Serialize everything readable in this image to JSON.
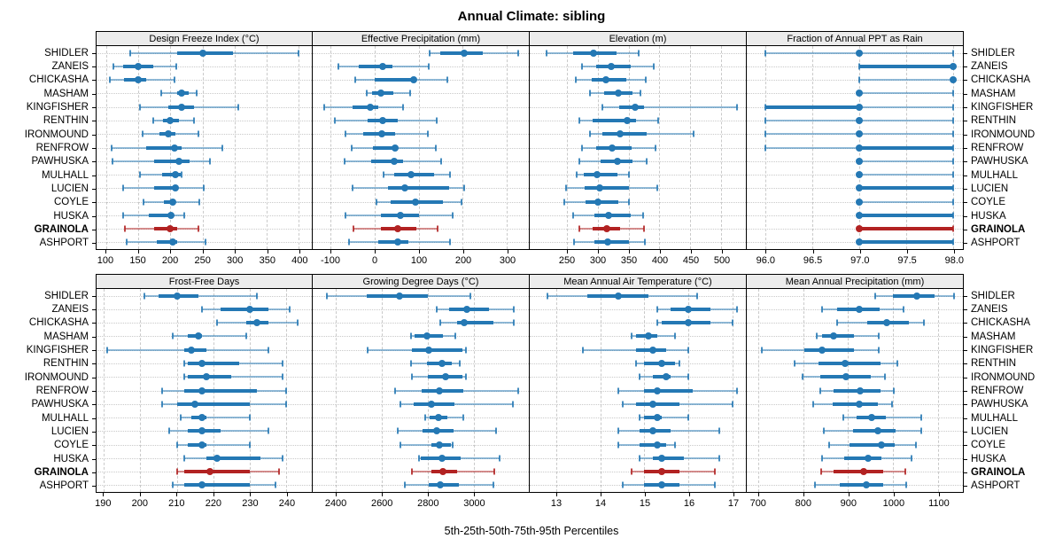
{
  "title": "Annual Climate: sibling",
  "caption": "5th-25th-50th-75th-95th Percentiles",
  "stations": [
    "SHIDLER",
    "ZANEIS",
    "CHICKASHA",
    "MASHAM",
    "KINGFISHER",
    "RENTHIN",
    "IRONMOUND",
    "RENFROW",
    "PAWHUSKA",
    "MULHALL",
    "LUCIEN",
    "COYLE",
    "HUSKA",
    "GRAINOLA",
    "ASHPORT"
  ],
  "highlight_station": "GRAINOLA",
  "colors": {
    "normal": "#2478b4",
    "highlight": "#b22222",
    "strip_bg": "#ececec",
    "grid": "#c9c9c9"
  },
  "chart_data": {
    "type": "dotplot-percentiles",
    "percentile_labels": [
      "5th",
      "25th",
      "50th",
      "75th",
      "95th"
    ],
    "layout": {
      "rows": 2,
      "cols": 4
    },
    "panels": [
      {
        "title": "Design Freeze Index (°C)",
        "row": 0,
        "col": 0,
        "xlim": [
          85,
          420
        ],
        "ticks": [
          100,
          150,
          200,
          250,
          300,
          350,
          400
        ],
        "tick_labels": [
          "100",
          "150",
          "200",
          "250",
          "300",
          "350",
          "400"
        ],
        "series": [
          [
            138,
            210,
            250,
            297,
            399
          ],
          [
            111,
            126,
            150,
            173,
            209
          ],
          [
            106,
            128,
            150,
            162,
            206
          ],
          [
            185,
            210,
            218,
            228,
            241
          ],
          [
            152,
            197,
            218,
            236,
            305
          ],
          [
            173,
            189,
            200,
            213,
            237
          ],
          [
            157,
            183,
            196,
            208,
            243
          ],
          [
            108,
            162,
            207,
            218,
            281
          ],
          [
            110,
            175,
            213,
            230,
            262
          ],
          [
            152,
            187,
            208,
            216,
            218
          ],
          [
            127,
            175,
            208,
            210,
            252
          ],
          [
            158,
            190,
            204,
            208,
            245
          ],
          [
            127,
            167,
            201,
            204,
            222
          ],
          [
            129,
            175,
            200,
            210,
            243
          ],
          [
            132,
            179,
            204,
            210,
            255
          ]
        ]
      },
      {
        "title": "Effective Precipitation (mm)",
        "row": 0,
        "col": 1,
        "xlim": [
          -140,
          350
        ],
        "ticks": [
          -100,
          0,
          100,
          200,
          300
        ],
        "tick_labels": [
          "-100",
          "0",
          "100",
          "200",
          "300"
        ],
        "series": [
          [
            125,
            149,
            203,
            245,
            325
          ],
          [
            -82,
            -36,
            18,
            41,
            124
          ],
          [
            -44,
            0,
            88,
            94,
            166
          ],
          [
            -17,
            -5,
            15,
            42,
            80
          ],
          [
            -113,
            -49,
            -9,
            8,
            64
          ],
          [
            -89,
            -15,
            18,
            52,
            142
          ],
          [
            -66,
            -26,
            16,
            47,
            121
          ],
          [
            -52,
            -3,
            46,
            52,
            139
          ],
          [
            -67,
            -7,
            44,
            64,
            152
          ],
          [
            21,
            45,
            83,
            136,
            172
          ],
          [
            -50,
            30,
            68,
            169,
            203
          ],
          [
            5,
            37,
            92,
            156,
            198
          ],
          [
            -66,
            15,
            58,
            102,
            178
          ],
          [
            -47,
            15,
            53,
            95,
            144
          ],
          [
            -57,
            8,
            52,
            77,
            171
          ]
        ]
      },
      {
        "title": "Elevation (m)",
        "row": 0,
        "col": 2,
        "xlim": [
          190,
          540
        ],
        "ticks": [
          250,
          300,
          350,
          400,
          450,
          500
        ],
        "tick_labels": [
          "250",
          "300",
          "350",
          "400",
          "450",
          "500"
        ],
        "series": [
          [
            217,
            261,
            293,
            331,
            367
          ],
          [
            275,
            298,
            322,
            354,
            391
          ],
          [
            264,
            290,
            313,
            347,
            378
          ],
          [
            288,
            311,
            333,
            356,
            369
          ],
          [
            307,
            335,
            361,
            375,
            525
          ],
          [
            271,
            292,
            348,
            362,
            398
          ],
          [
            287,
            307,
            336,
            379,
            455
          ],
          [
            274,
            298,
            323,
            355,
            393
          ],
          [
            270,
            305,
            332,
            356,
            379
          ],
          [
            266,
            278,
            299,
            332,
            350
          ],
          [
            249,
            279,
            304,
            351,
            396
          ],
          [
            246,
            280,
            300,
            333,
            350
          ],
          [
            261,
            295,
            318,
            354,
            373
          ],
          [
            271,
            292,
            315,
            337,
            375
          ],
          [
            262,
            295,
            316,
            350,
            376
          ]
        ]
      },
      {
        "title": "Fraction of Annual PPT as Rain",
        "row": 0,
        "col": 3,
        "xlim": [
          95.8,
          98.1
        ],
        "ticks": [
          96.0,
          96.5,
          97.0,
          97.5,
          98.0
        ],
        "tick_labels": [
          "96.0",
          "96.5",
          "97.0",
          "97.5",
          "98.0"
        ],
        "series": [
          [
            96,
            97,
            97,
            97,
            98
          ],
          [
            97,
            97,
            98,
            98,
            98
          ],
          [
            97,
            98,
            98,
            98,
            98
          ],
          [
            97,
            97,
            97,
            97,
            98
          ],
          [
            96,
            96,
            97,
            97,
            98
          ],
          [
            96,
            97,
            97,
            97,
            98
          ],
          [
            96,
            97,
            97,
            97,
            98
          ],
          [
            96,
            97,
            97,
            98,
            98
          ],
          [
            97,
            97,
            97,
            97,
            98
          ],
          [
            97,
            97,
            97,
            97,
            98
          ],
          [
            97,
            97,
            97,
            98,
            98
          ],
          [
            97,
            97,
            97,
            97,
            98
          ],
          [
            97,
            97,
            97,
            98,
            98
          ],
          [
            97,
            97,
            97,
            98,
            98
          ],
          [
            97,
            97,
            97,
            98,
            98
          ]
        ]
      },
      {
        "title": "Frost-Free Days",
        "row": 1,
        "col": 0,
        "xlim": [
          188,
          247
        ],
        "ticks": [
          190,
          200,
          210,
          220,
          230,
          240
        ],
        "tick_labels": [
          "190",
          "200",
          "210",
          "220",
          "230",
          "240"
        ],
        "series": [
          [
            201,
            205,
            210,
            216,
            232
          ],
          [
            217,
            222,
            230,
            235,
            241
          ],
          [
            221,
            229,
            232,
            235,
            243
          ],
          [
            209,
            213,
            216,
            217,
            229
          ],
          [
            191,
            212,
            214,
            218,
            235
          ],
          [
            212,
            213,
            217,
            227,
            239
          ],
          [
            212,
            213,
            218,
            225,
            239
          ],
          [
            206,
            212,
            217,
            232,
            240
          ],
          [
            206,
            210,
            215,
            230,
            240
          ],
          [
            211,
            214,
            217,
            218,
            230
          ],
          [
            208,
            213,
            217,
            222,
            235
          ],
          [
            210,
            213,
            217,
            218,
            230
          ],
          [
            212,
            218,
            221,
            233,
            239
          ],
          [
            210,
            212,
            219,
            230,
            238
          ],
          [
            209,
            212,
            217,
            230,
            237
          ]
        ]
      },
      {
        "title": "Growing Degree Days (°C)",
        "row": 1,
        "col": 1,
        "xlim": [
          2300,
          3240
        ],
        "ticks": [
          2400,
          2600,
          2800,
          3000
        ],
        "tick_labels": [
          "2400",
          "2600",
          "2800",
          "3000"
        ],
        "series": [
          [
            2362,
            2534,
            2679,
            2800,
            2985
          ],
          [
            2838,
            2892,
            2971,
            3068,
            3176
          ],
          [
            2855,
            2928,
            2960,
            3085,
            3173
          ],
          [
            2726,
            2742,
            2796,
            2866,
            2921
          ],
          [
            2540,
            2730,
            2803,
            2950,
            2968
          ],
          [
            2726,
            2796,
            2863,
            2905,
            2939
          ],
          [
            2730,
            2800,
            2877,
            2950,
            2968
          ],
          [
            2658,
            2774,
            2851,
            2956,
            3192
          ],
          [
            2681,
            2739,
            2815,
            2918,
            3171
          ],
          [
            2790,
            2809,
            2847,
            2886,
            2953
          ],
          [
            2671,
            2777,
            2838,
            2911,
            3097
          ],
          [
            2681,
            2815,
            2851,
            2902,
            2909
          ],
          [
            2762,
            2771,
            2863,
            2943,
            3112
          ],
          [
            2732,
            2815,
            2867,
            2927,
            3090
          ],
          [
            2700,
            2803,
            2856,
            2937,
            3086
          ]
        ]
      },
      {
        "title": "Mean Annual Air Temperature (°C)",
        "row": 1,
        "col": 2,
        "xlim": [
          12.4,
          17.3
        ],
        "ticks": [
          13,
          14,
          15,
          16,
          17
        ],
        "tick_labels": [
          "13",
          "14",
          "15",
          "16",
          "17"
        ],
        "series": [
          [
            12.8,
            13.7,
            14.4,
            15.1,
            16.2
          ],
          [
            15.3,
            15.6,
            16.0,
            16.5,
            17.1
          ],
          [
            15.3,
            15.4,
            16.0,
            16.5,
            17.0
          ],
          [
            14.7,
            14.8,
            15.1,
            15.3,
            15.7
          ],
          [
            13.6,
            14.8,
            15.2,
            15.5,
            16.0
          ],
          [
            14.8,
            15.0,
            15.4,
            15.7,
            15.8
          ],
          [
            14.9,
            15.2,
            15.5,
            15.6,
            16.0
          ],
          [
            14.4,
            15.0,
            15.3,
            16.1,
            17.1
          ],
          [
            14.5,
            14.8,
            15.2,
            15.8,
            17.0
          ],
          [
            14.9,
            15.0,
            15.3,
            15.4,
            16.0
          ],
          [
            14.4,
            14.9,
            15.2,
            15.6,
            16.7
          ],
          [
            14.4,
            14.9,
            15.3,
            15.5,
            15.7
          ],
          [
            14.9,
            15.2,
            15.4,
            15.9,
            16.7
          ],
          [
            14.7,
            15.0,
            15.4,
            15.8,
            16.6
          ],
          [
            14.5,
            15.0,
            15.4,
            15.8,
            16.6
          ]
        ]
      },
      {
        "title": "Mean Annual Precipitation (mm)",
        "row": 1,
        "col": 3,
        "xlim": [
          675,
          1155
        ],
        "ticks": [
          700,
          800,
          900,
          1000,
          1100
        ],
        "tick_labels": [
          "700",
          "800",
          "900",
          "1000",
          "1100"
        ],
        "series": [
          [
            961,
            999,
            1053,
            1092,
            1136
          ],
          [
            843,
            875,
            924,
            971,
            1024
          ],
          [
            875,
            943,
            986,
            1035,
            1069
          ],
          [
            831,
            842,
            868,
            914,
            969
          ],
          [
            709,
            803,
            843,
            914,
            969
          ],
          [
            782,
            835,
            894,
            973,
            1010
          ],
          [
            799,
            839,
            896,
            950,
            982
          ],
          [
            839,
            868,
            927,
            973,
            1002
          ],
          [
            822,
            865,
            924,
            966,
            997
          ],
          [
            889,
            919,
            952,
            984,
            1063
          ],
          [
            847,
            911,
            966,
            1005,
            1063
          ],
          [
            857,
            904,
            974,
            1004,
            1051
          ],
          [
            843,
            891,
            945,
            975,
            1041
          ],
          [
            841,
            868,
            935,
            978,
            1027
          ],
          [
            827,
            881,
            940,
            978,
            1030
          ]
        ]
      }
    ]
  }
}
